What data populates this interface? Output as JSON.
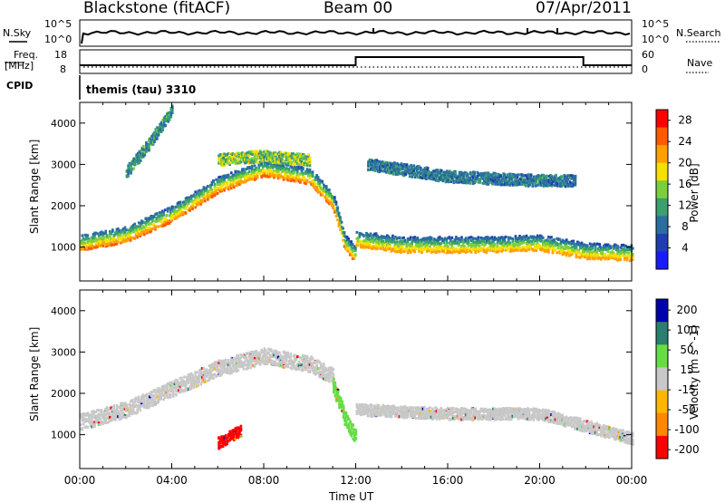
{
  "header": {
    "station": "Blackstone (fitACF)",
    "beam": "Beam 00",
    "date": "07/Apr/2011"
  },
  "top_panels": {
    "nsky_label": "N.Sky",
    "nsky_ticks": [
      "10^5",
      "10^0"
    ],
    "nsearch_label": "N.Search",
    "nsearch_ticks": [
      "10^5",
      "10^0"
    ],
    "freq_label_1": "Freq.",
    "freq_label_2": "[MHz]",
    "freq_ticks": [
      "18",
      "8"
    ],
    "nave_label": "Nave",
    "nave_ticks": [
      "60",
      "0"
    ],
    "cpid_label": "CPID",
    "cpid_value": "themis (tau) 3310"
  },
  "colors": {
    "power": [
      "#1a1aff",
      "#1f3fb0",
      "#2a6fa0",
      "#3aa070",
      "#7ccf3c",
      "#f5e000",
      "#ffa000",
      "#ff5a00",
      "#ff0000"
    ],
    "velocity": [
      "#ff0000",
      "#ff8800",
      "#ffb600",
      "#c8c8c8",
      "#66dd44",
      "#2a7f6f",
      "#0000aa"
    ]
  },
  "chart_data": [
    {
      "type": "heatmap",
      "title": "Power",
      "ylabel": "Slant Range [km]",
      "xlabel": "",
      "ylim": [
        180,
        4500
      ],
      "yticks": [
        "4000",
        "3000",
        "2000",
        "1000"
      ],
      "colorbar_label": "Power [dB]",
      "colorbar_ticks": [
        "28",
        "24",
        "20",
        "16",
        "12",
        "8",
        "4"
      ],
      "colorbar_range": [
        0,
        30
      ],
      "bands": [
        {
          "x": [
            0,
            2,
            4,
            6,
            8,
            10,
            11,
            11.5,
            12
          ],
          "y_center": [
            1100,
            1300,
            1800,
            2500,
            2900,
            2700,
            2100,
            1100,
            800
          ],
          "power": 26
        },
        {
          "x": [
            12,
            14,
            16,
            18,
            20,
            22,
            24
          ],
          "y_center": [
            1200,
            1050,
            1050,
            1050,
            1100,
            900,
            850
          ],
          "power": 24
        },
        {
          "x": [
            2,
            3,
            4
          ],
          "y_center": [
            2800,
            3500,
            4300
          ],
          "power": 10
        },
        {
          "x": [
            6,
            8,
            10
          ],
          "y_center": [
            3100,
            3200,
            3100
          ],
          "power": 15
        },
        {
          "x": [
            12.5,
            16,
            20,
            21.5
          ],
          "y_center": [
            3000,
            2700,
            2600,
            2600
          ],
          "power": 8
        }
      ]
    },
    {
      "type": "heatmap",
      "title": "Velocity",
      "ylabel": "Slant Range [km]",
      "xlabel": "Time UT",
      "xticks": [
        "00:00",
        "04:00",
        "08:00",
        "12:00",
        "16:00",
        "20:00",
        "00:00"
      ],
      "xlim": [
        0,
        24
      ],
      "ylim": [
        180,
        4500
      ],
      "yticks": [
        "4000",
        "3000",
        "2000",
        "1000"
      ],
      "colorbar_label": "Velocity [m s^-1]",
      "colorbar_ticks": [
        "200",
        "100",
        "50",
        "15",
        "-15",
        "-50",
        "-100",
        "-200"
      ],
      "colorbar_range": [
        -250,
        250
      ],
      "bands": [
        {
          "x": [
            0,
            2,
            4,
            6,
            8,
            10,
            11
          ],
          "y_center": [
            1300,
            1600,
            2100,
            2600,
            2900,
            2700,
            2400
          ],
          "velocity": 0
        },
        {
          "x": [
            11,
            11.5,
            12
          ],
          "y_center": [
            2200,
            1400,
            900
          ],
          "velocity": 30
        },
        {
          "x": [
            12,
            16,
            20,
            22,
            24
          ],
          "y_center": [
            1600,
            1500,
            1500,
            1200,
            900
          ],
          "velocity": 0
        },
        {
          "x": [
            6,
            7
          ],
          "y_center": [
            800,
            1100
          ],
          "velocity": -120
        }
      ]
    }
  ]
}
